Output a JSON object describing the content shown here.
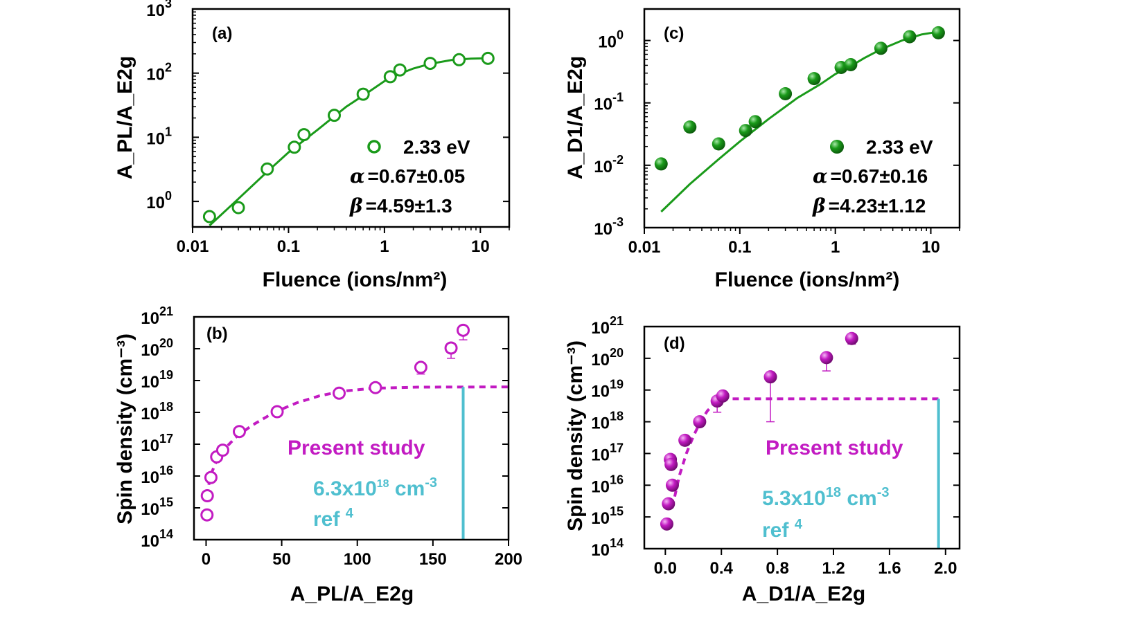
{
  "figure": {
    "colors": {
      "green": "#1a9a1a",
      "magenta": "#c21bc2",
      "cyan": "#4fbfcf",
      "axis": "#000000"
    }
  },
  "chart_data": [
    {
      "id": "a",
      "panel_label": "(a)",
      "type": "scatter",
      "xscale": "log",
      "yscale": "log",
      "xlim": [
        0.01,
        20
      ],
      "ylim": [
        0.4,
        1000
      ],
      "xticks": [
        {
          "v": 0.01,
          "label": "0.01"
        },
        {
          "v": 0.1,
          "label": "0.1"
        },
        {
          "v": 1,
          "label": "1"
        },
        {
          "v": 10,
          "label": "10"
        }
      ],
      "yticks": [
        {
          "v": 1,
          "base": "10",
          "exp": "0"
        },
        {
          "v": 10,
          "base": "10",
          "exp": "1"
        },
        {
          "v": 100,
          "base": "10",
          "exp": "2"
        },
        {
          "v": 1000,
          "base": "10",
          "exp": "3"
        }
      ],
      "xlabel": "Fluence (ions/nm²)",
      "ylabel": "A_PL/A_E2g",
      "marker": "open-circle",
      "color": "#1a9a1a",
      "points": [
        [
          0.015,
          0.58
        ],
        [
          0.03,
          0.8
        ],
        [
          0.06,
          3.2
        ],
        [
          0.115,
          7.0
        ],
        [
          0.145,
          11.0
        ],
        [
          0.3,
          22
        ],
        [
          0.6,
          47
        ],
        [
          1.15,
          88
        ],
        [
          1.45,
          112
        ],
        [
          3.0,
          142
        ],
        [
          6.0,
          162
        ],
        [
          12.0,
          170
        ]
      ],
      "fit": {
        "type": "line",
        "points": [
          [
            0.015,
            0.42
          ],
          [
            0.03,
            1.1
          ],
          [
            0.06,
            2.9
          ],
          [
            0.1,
            5.8
          ],
          [
            0.2,
            13
          ],
          [
            0.4,
            30
          ],
          [
            0.7,
            52
          ],
          [
            1.0,
            75
          ],
          [
            1.5,
            100
          ],
          [
            2.0,
            118
          ],
          [
            3.0,
            140
          ],
          [
            5.0,
            160
          ],
          [
            8.0,
            168
          ],
          [
            12.0,
            171
          ]
        ]
      },
      "legend": {
        "label": "2.33 eV",
        "alpha": "α",
        "alpha_text": "=0.67±0.05",
        "beta": "β",
        "beta_text": "=4.59±1.3"
      }
    },
    {
      "id": "c",
      "panel_label": "(c)",
      "type": "scatter",
      "xscale": "log",
      "yscale": "log",
      "xlim": [
        0.01,
        20
      ],
      "ylim": [
        0.001,
        3.2
      ],
      "xticks": [
        {
          "v": 0.01,
          "label": "0.01"
        },
        {
          "v": 0.1,
          "label": "0.1"
        },
        {
          "v": 1,
          "label": "1"
        },
        {
          "v": 10,
          "label": "10"
        }
      ],
      "yticks": [
        {
          "v": 0.001,
          "base": "10",
          "exp": "-3"
        },
        {
          "v": 0.01,
          "base": "10",
          "exp": "-2"
        },
        {
          "v": 0.1,
          "base": "10",
          "exp": "-1"
        },
        {
          "v": 1,
          "base": "10",
          "exp": "0"
        }
      ],
      "xlabel": "Fluence (ions/nm²)",
      "ylabel": "A_D1/A_E2g",
      "marker": "filled-sphere",
      "color": "#1a9a1a",
      "points": [
        [
          0.015,
          0.0105
        ],
        [
          0.03,
          0.041
        ],
        [
          0.06,
          0.022
        ],
        [
          0.115,
          0.036
        ],
        [
          0.145,
          0.05
        ],
        [
          0.3,
          0.14
        ],
        [
          0.6,
          0.245
        ],
        [
          1.15,
          0.37
        ],
        [
          1.45,
          0.41
        ],
        [
          3.0,
          0.75
        ],
        [
          6.0,
          1.15
        ],
        [
          12.0,
          1.33
        ]
      ],
      "fit": {
        "type": "line",
        "points": [
          [
            0.015,
            0.0018
          ],
          [
            0.03,
            0.005
          ],
          [
            0.06,
            0.0125
          ],
          [
            0.1,
            0.024
          ],
          [
            0.2,
            0.055
          ],
          [
            0.4,
            0.12
          ],
          [
            0.7,
            0.2
          ],
          [
            1.0,
            0.29
          ],
          [
            1.5,
            0.4
          ],
          [
            2.0,
            0.52
          ],
          [
            3.0,
            0.72
          ],
          [
            5.0,
            1.0
          ],
          [
            8.0,
            1.25
          ],
          [
            12.0,
            1.38
          ]
        ]
      },
      "legend": {
        "label": "2.33 eV",
        "alpha": "α",
        "alpha_text": "=0.67±0.16",
        "beta": "β",
        "beta_text": "=4.23±1.12"
      }
    },
    {
      "id": "b",
      "panel_label": "(b)",
      "type": "scatter",
      "xscale": "linear",
      "yscale": "log",
      "xlim": [
        -8,
        200
      ],
      "ylim": [
        100000000000000.0,
        1e+21
      ],
      "xticks": [
        {
          "v": 0,
          "label": "0"
        },
        {
          "v": 50,
          "label": "50"
        },
        {
          "v": 100,
          "label": "100"
        },
        {
          "v": 150,
          "label": "150"
        },
        {
          "v": 200,
          "label": "200"
        }
      ],
      "yticks": [
        {
          "v": 100000000000000.0,
          "base": "10",
          "exp": "14"
        },
        {
          "v": 1000000000000000.0,
          "base": "10",
          "exp": "15"
        },
        {
          "v": 1e+16,
          "base": "10",
          "exp": "16"
        },
        {
          "v": 1e+17,
          "base": "10",
          "exp": "17"
        },
        {
          "v": 1e+18,
          "base": "10",
          "exp": "18"
        },
        {
          "v": 1e+19,
          "base": "10",
          "exp": "19"
        },
        {
          "v": 1e+20,
          "base": "10",
          "exp": "20"
        },
        {
          "v": 1e+21,
          "base": "10",
          "exp": "21"
        }
      ],
      "xlabel": "A_PL/A_E2g",
      "ylabel": "Spin density (cm⁻³)",
      "marker": "open-circle",
      "color": "#c21bc2",
      "points": [
        [
          0.6,
          600000000000000.0,
          450000000000000.0
        ],
        [
          0.8,
          2400000000000000.0,
          1800000000000000.0
        ],
        [
          3.2,
          9000000000000000.0,
          7000000000000000.0
        ],
        [
          7.0,
          4e+16,
          3e+16
        ],
        [
          11.0,
          6.5e+16,
          5e+16
        ],
        [
          22,
          2.5e+17,
          2e+17
        ],
        [
          47,
          1.05e+18,
          8e+17
        ],
        [
          88,
          4e+18,
          3e+18
        ],
        [
          112,
          6e+18,
          4.5e+18
        ],
        [
          142,
          2.6e+19,
          1.6e+19
        ],
        [
          162,
          1.05e+20,
          5e+19
        ],
        [
          170,
          3.8e+20,
          1.9e+20
        ]
      ],
      "fit": {
        "type": "dashed",
        "points": [
          [
            0.8,
            2400000000000000.0
          ],
          [
            2,
            6000000000000000.0
          ],
          [
            4,
            1.4e+16
          ],
          [
            7,
            3e+16
          ],
          [
            12,
            7e+16
          ],
          [
            20,
            1.7e+17
          ],
          [
            30,
            3.8e+17
          ],
          [
            45,
            1e+18
          ],
          [
            60,
            2e+18
          ],
          [
            75,
            3.3e+18
          ],
          [
            90,
            4.6e+18
          ],
          [
            110,
            5.7e+18
          ],
          [
            140,
            6.2e+18
          ],
          [
            200,
            6.3e+18
          ]
        ]
      },
      "reference": {
        "x": 170,
        "y": 6.3e+18
      },
      "annotation": {
        "title": "Present study",
        "value_base": "6.3x10",
        "value_exp": "18",
        "unit": " cm",
        "unit_exp": "-3",
        "ref": "ref ",
        "ref_num": "4"
      }
    },
    {
      "id": "d",
      "panel_label": "(d)",
      "type": "scatter",
      "xscale": "linear",
      "yscale": "log",
      "xlim": [
        -0.15,
        2.1
      ],
      "ylim": [
        100000000000000.0,
        1e+21
      ],
      "xticks": [
        {
          "v": 0.0,
          "label": "0.0"
        },
        {
          "v": 0.4,
          "label": "0.4"
        },
        {
          "v": 0.8,
          "label": "0.8"
        },
        {
          "v": 1.2,
          "label": "1.2"
        },
        {
          "v": 1.6,
          "label": "1.6"
        },
        {
          "v": 2.0,
          "label": "2.0"
        }
      ],
      "yticks": [
        {
          "v": 100000000000000.0,
          "base": "10",
          "exp": "14"
        },
        {
          "v": 1000000000000000.0,
          "base": "10",
          "exp": "15"
        },
        {
          "v": 1e+16,
          "base": "10",
          "exp": "16"
        },
        {
          "v": 1e+17,
          "base": "10",
          "exp": "17"
        },
        {
          "v": 1e+18,
          "base": "10",
          "exp": "18"
        },
        {
          "v": 1e+19,
          "base": "10",
          "exp": "19"
        },
        {
          "v": 1e+20,
          "base": "10",
          "exp": "20"
        },
        {
          "v": 1e+21,
          "base": "10",
          "exp": "21"
        }
      ],
      "xlabel": "A_D1/A_E2g",
      "ylabel": "Spin density (cm⁻³)",
      "marker": "filled-sphere",
      "color": "#c21bc2",
      "points": [
        [
          0.0105,
          600000000000000.0,
          450000000000000.0
        ],
        [
          0.022,
          2600000000000000.0,
          2000000000000000.0
        ],
        [
          0.036,
          6.5e+16,
          5e+16
        ],
        [
          0.041,
          4.5e+16,
          3.5e+16
        ],
        [
          0.05,
          1e+16,
          8000000000000000.0
        ],
        [
          0.14,
          2.6e+17,
          2e+17
        ],
        [
          0.245,
          1e+18,
          8e+17
        ],
        [
          0.37,
          4.5e+18,
          2e+18
        ],
        [
          0.41,
          6.5e+18,
          5e+18
        ],
        [
          0.75,
          2.6e+19,
          1e+18
        ],
        [
          1.15,
          1.05e+20,
          4e+19
        ],
        [
          1.33,
          4.2e+20,
          2.8e+20
        ]
      ],
      "fit": {
        "type": "dashed",
        "points": [
          [
            0.05,
            2000000000000000.0
          ],
          [
            0.1,
            2e+16
          ],
          [
            0.15,
            1e+17
          ],
          [
            0.2,
            3.5e+17
          ],
          [
            0.25,
            1e+18
          ],
          [
            0.3,
            2.2e+18
          ],
          [
            0.35,
            3.8e+18
          ],
          [
            0.42,
            5.3e+18
          ],
          [
            1.95,
            5.3e+18
          ]
        ]
      },
      "reference": {
        "x": 1.95,
        "y": 5.3e+18
      },
      "annotation": {
        "title": "Present study",
        "value_base": "5.3x10",
        "value_exp": "18",
        "unit": " cm",
        "unit_exp": "-3",
        "ref": "ref ",
        "ref_num": "4"
      }
    }
  ]
}
